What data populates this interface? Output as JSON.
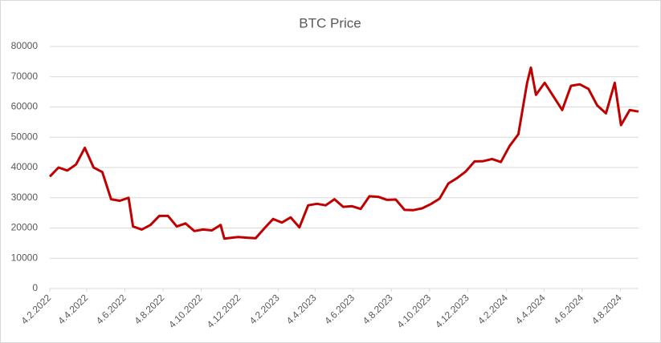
{
  "chart_data": {
    "type": "line",
    "title": "BTC Price",
    "x": [
      "4.2.2022",
      "18.2.2022",
      "4.3.2022",
      "18.3.2022",
      "1.4.2022",
      "15.4.2022",
      "29.4.2022",
      "13.5.2022",
      "27.5.2022",
      "10.6.2022",
      "17.6.2022",
      "1.7.2022",
      "15.7.2022",
      "29.7.2022",
      "12.8.2022",
      "26.8.2022",
      "9.9.2022",
      "23.9.2022",
      "7.10.2022",
      "21.10.2022",
      "4.11.2022",
      "10.11.2022",
      "18.11.2022",
      "2.12.2022",
      "16.12.2022",
      "30.12.2022",
      "13.1.2023",
      "27.1.2023",
      "10.2.2023",
      "24.2.2023",
      "10.3.2023",
      "24.3.2023",
      "7.4.2023",
      "21.4.2023",
      "5.5.2023",
      "19.5.2023",
      "2.6.2023",
      "16.6.2023",
      "30.6.2023",
      "14.7.2023",
      "28.7.2023",
      "11.8.2023",
      "25.8.2023",
      "8.9.2023",
      "22.9.2023",
      "6.10.2023",
      "20.10.2023",
      "3.11.2023",
      "17.11.2023",
      "1.12.2023",
      "15.12.2023",
      "29.12.2023",
      "12.1.2024",
      "26.1.2024",
      "9.2.2024",
      "23.2.2024",
      "8.3.2024",
      "14.3.2024",
      "22.3.2024",
      "5.4.2024",
      "19.4.2024",
      "3.5.2024",
      "17.5.2024",
      "31.5.2024",
      "14.6.2024",
      "28.6.2024",
      "12.7.2024",
      "26.7.2024",
      "5.8.2024",
      "19.8.2024",
      "2.9.2024"
    ],
    "series": [
      {
        "name": "BTC Price",
        "color": "#c00000",
        "values": [
          37000,
          40000,
          39000,
          41000,
          46500,
          40000,
          38500,
          29500,
          29000,
          30000,
          20500,
          19500,
          21000,
          24000,
          24000,
          20500,
          21500,
          19000,
          19500,
          19200,
          21000,
          16500,
          16700,
          17000,
          16800,
          16600,
          19900,
          23000,
          21800,
          23500,
          20200,
          27500,
          28000,
          27500,
          29500,
          27000,
          27200,
          26300,
          30500,
          30300,
          29300,
          29400,
          26000,
          25900,
          26500,
          27900,
          29700,
          34700,
          36500,
          38700,
          42000,
          42100,
          42800,
          41800,
          47100,
          51000,
          68000,
          73000,
          64000,
          68000,
          63500,
          59000,
          67000,
          67500,
          66000,
          60500,
          57900,
          68000,
          54000,
          59000,
          58500
        ]
      }
    ],
    "xlim": [
      "4.2.2022",
      "2.9.2024"
    ],
    "xticks": [
      "4.2.2022",
      "4.4.2022",
      "4.6.2022",
      "4.8.2022",
      "4.10.2022",
      "4.12.2022",
      "4.2.2023",
      "4.4.2023",
      "4.6.2023",
      "4.8.2023",
      "4.10.2023",
      "4.12.2023",
      "4.2.2024",
      "4.4.2024",
      "4.6.2024",
      "4.8.2024"
    ],
    "ylim": [
      0,
      80000
    ],
    "yticks": [
      0,
      10000,
      20000,
      30000,
      40000,
      50000,
      60000,
      70000,
      80000
    ],
    "grid": true
  }
}
